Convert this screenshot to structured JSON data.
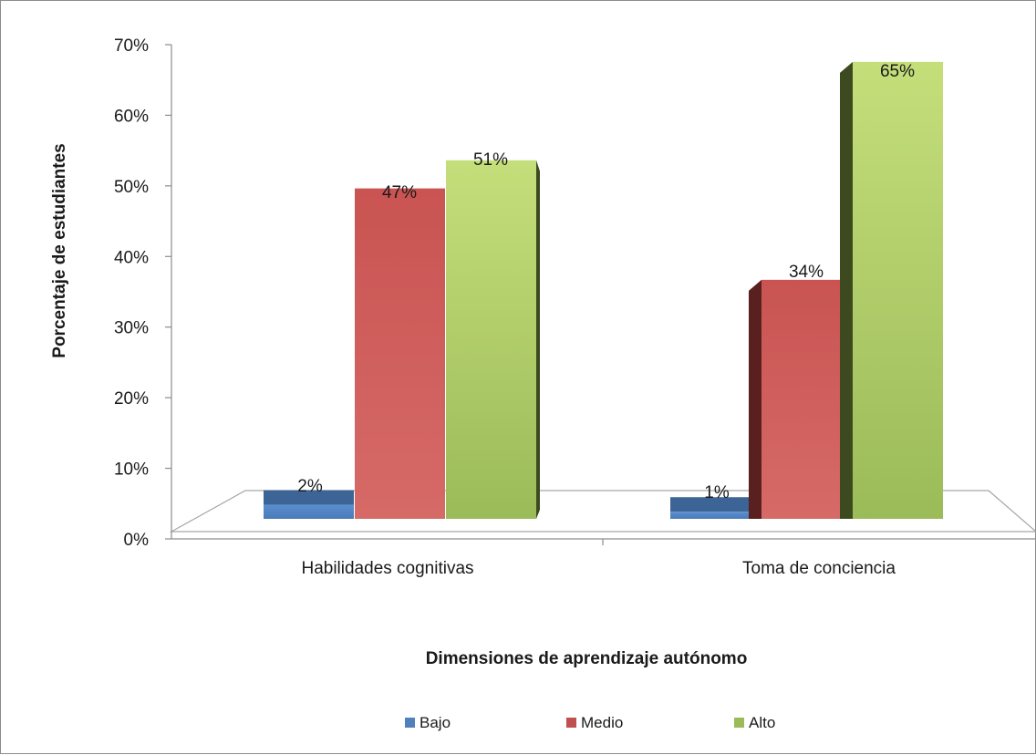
{
  "chart_data": {
    "type": "bar",
    "title": "",
    "xlabel": "Dimensiones de aprendizaje autónomo",
    "ylabel": "Porcentaje de estudiantes",
    "categories": [
      "Habilidades cognitivas",
      "Toma de conciencia"
    ],
    "series": [
      {
        "name": "Bajo",
        "values": [
          2,
          1
        ],
        "labels": [
          "2%",
          "1%"
        ],
        "color": "#4f81bd"
      },
      {
        "name": "Medio",
        "values": [
          47,
          34
        ],
        "labels": [
          "47%",
          "34%"
        ],
        "color": "#c0504d"
      },
      {
        "name": "Alto",
        "values": [
          51,
          65
        ],
        "labels": [
          "51%",
          "65%"
        ],
        "color": "#9bbb59"
      }
    ],
    "yticks": [
      "0%",
      "10%",
      "20%",
      "30%",
      "40%",
      "50%",
      "60%",
      "70%"
    ],
    "ylim": [
      0,
      70
    ],
    "grid": false,
    "style": "3d-column",
    "legend_position": "bottom"
  }
}
